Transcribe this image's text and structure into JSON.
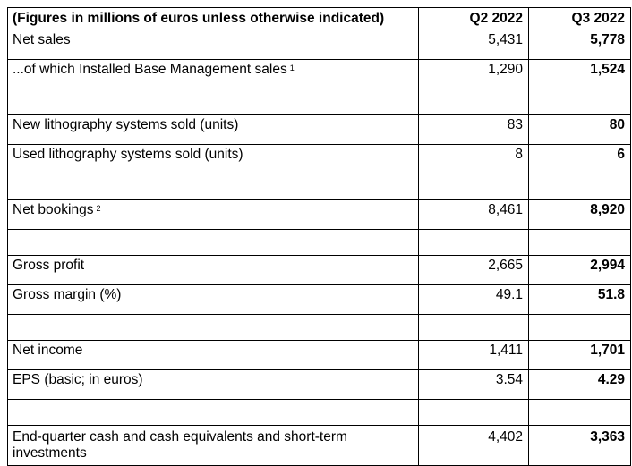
{
  "table": {
    "header": {
      "label": "(Figures in millions of euros unless otherwise indicated)",
      "q2": "Q2 2022",
      "q3": "Q3 2022"
    },
    "rows": [
      {
        "label": "Net sales",
        "footnote": "",
        "q2": "5,431",
        "q3": "5,778"
      },
      {
        "label": "...of which Installed Base Management sales",
        "footnote": "1",
        "q2": "1,290",
        "q3": "1,524"
      },
      {
        "label": "New lithography systems sold (units)",
        "footnote": "",
        "q2": "83",
        "q3": "80"
      },
      {
        "label": "Used lithography systems sold (units)",
        "footnote": "",
        "q2": "8",
        "q3": "6"
      },
      {
        "label": "Net bookings",
        "footnote": "2",
        "q2": "8,461",
        "q3": "8,920"
      },
      {
        "label": "Gross profit",
        "footnote": "",
        "q2": "2,665",
        "q3": "2,994"
      },
      {
        "label": "Gross margin (%)",
        "footnote": "",
        "q2": "49.1",
        "q3": "51.8"
      },
      {
        "label": "Net income",
        "footnote": "",
        "q2": "1,411",
        "q3": "1,701"
      },
      {
        "label": "EPS (basic; in euros)",
        "footnote": "",
        "q2": "3.54",
        "q3": "4.29"
      },
      {
        "label": "End-quarter cash and cash equivalents and short-term investments",
        "footnote": "",
        "q2": "4,402",
        "q3": "3,363"
      }
    ]
  }
}
